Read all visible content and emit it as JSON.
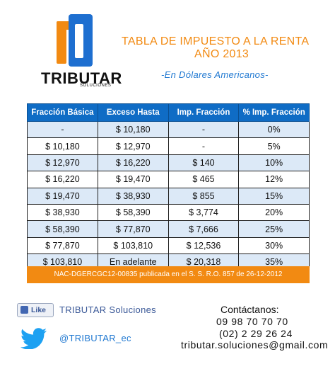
{
  "brand": {
    "name": "TRIBUTAR",
    "tagline": "SOLUCIONES"
  },
  "header": {
    "title_line1": "TABLA DE IMPUESTO A LA RENTA",
    "title_line2": "AÑO 2013",
    "subtitle": "-En Dólares Americanos-"
  },
  "table": {
    "headers": [
      "Fracción Básica",
      "Exceso Hasta",
      "Imp. Fracción",
      "% Imp. Fracción"
    ],
    "rows": [
      [
        "-",
        "$ 10,180",
        "-",
        "0%"
      ],
      [
        "$ 10,180",
        "$ 12,970",
        "-",
        "5%"
      ],
      [
        "$ 12,970",
        "$ 16,220",
        "$ 140",
        "10%"
      ],
      [
        "$ 16,220",
        "$ 19,470",
        "$ 465",
        "12%"
      ],
      [
        "$ 19,470",
        "$ 38,930",
        "$ 855",
        "15%"
      ],
      [
        "$ 38,930",
        "$ 58,390",
        "$ 3,774",
        "20%"
      ],
      [
        "$ 58,390",
        "$ 77,870",
        "$ 7,666",
        "25%"
      ],
      [
        "$ 77,870",
        "$ 103,810",
        "$ 12,536",
        "30%"
      ],
      [
        "$ 103,810",
        "En adelante",
        "$ 20,318",
        "35%"
      ]
    ]
  },
  "banner": "NAC-DGERCGC12-00835 publicada en el S. S. R.O. 857 de 26-12-2012",
  "social": {
    "like_label": "Like",
    "facebook_name": "TRIBUTAR Soluciones",
    "twitter_handle": "@TRIBUTAR_ec"
  },
  "contact": {
    "title": "Contáctanos:",
    "phone1": "09 98 70 70 70",
    "phone2": "(02) 2 29 26 24",
    "email": "tributar.soluciones@gmail.com"
  },
  "colors": {
    "orange": "#f28a12",
    "blue": "#0f6cc5",
    "row_tint": "#dce9f7"
  }
}
